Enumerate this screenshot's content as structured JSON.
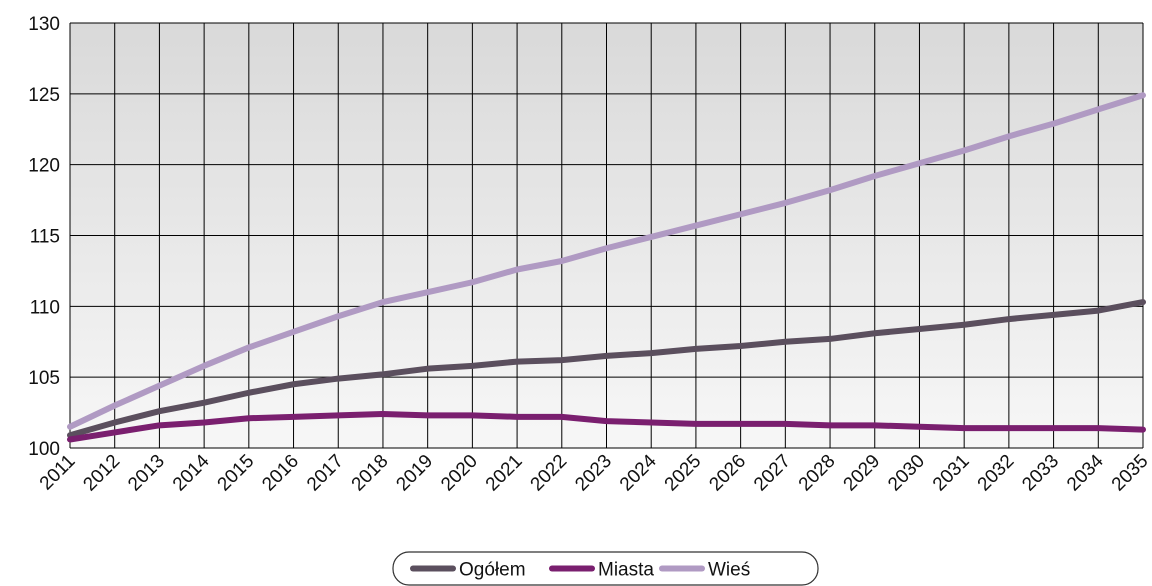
{
  "chart_data": {
    "type": "line",
    "categories": [
      "2011",
      "2012",
      "2013",
      "2014",
      "2015",
      "2016",
      "2017",
      "2018",
      "2019",
      "2020",
      "2021",
      "2022",
      "2023",
      "2024",
      "2025",
      "2026",
      "2027",
      "2028",
      "2029",
      "2030",
      "2031",
      "2032",
      "2033",
      "2034",
      "2035"
    ],
    "series": [
      {
        "name": "Ogółem",
        "color": "#5b4f5e",
        "values": [
          100.9,
          101.8,
          102.6,
          103.2,
          103.9,
          104.5,
          104.9,
          105.2,
          105.6,
          105.8,
          106.1,
          106.2,
          106.5,
          106.7,
          107.0,
          107.2,
          107.5,
          107.7,
          108.1,
          108.4,
          108.7,
          109.1,
          109.4,
          109.7,
          110.3
        ]
      },
      {
        "name": "Miasta",
        "color": "#7a1f6f",
        "values": [
          100.6,
          101.1,
          101.6,
          101.8,
          102.1,
          102.2,
          102.3,
          102.4,
          102.3,
          102.3,
          102.2,
          102.2,
          101.9,
          101.8,
          101.7,
          101.7,
          101.7,
          101.6,
          101.6,
          101.5,
          101.4,
          101.4,
          101.4,
          101.4,
          101.3
        ]
      },
      {
        "name": "Wieś",
        "color": "#b09ac3",
        "values": [
          101.5,
          103.0,
          104.4,
          105.8,
          107.1,
          108.2,
          109.3,
          110.3,
          111.0,
          111.7,
          112.6,
          113.2,
          114.1,
          114.9,
          115.7,
          116.5,
          117.3,
          118.2,
          119.2,
          120.1,
          121.0,
          122.0,
          122.9,
          123.9,
          124.9
        ]
      }
    ],
    "ylim": [
      100,
      130
    ],
    "yticks": [
      100,
      105,
      110,
      115,
      120,
      125,
      130
    ],
    "grid": true,
    "legend": "bottom"
  }
}
